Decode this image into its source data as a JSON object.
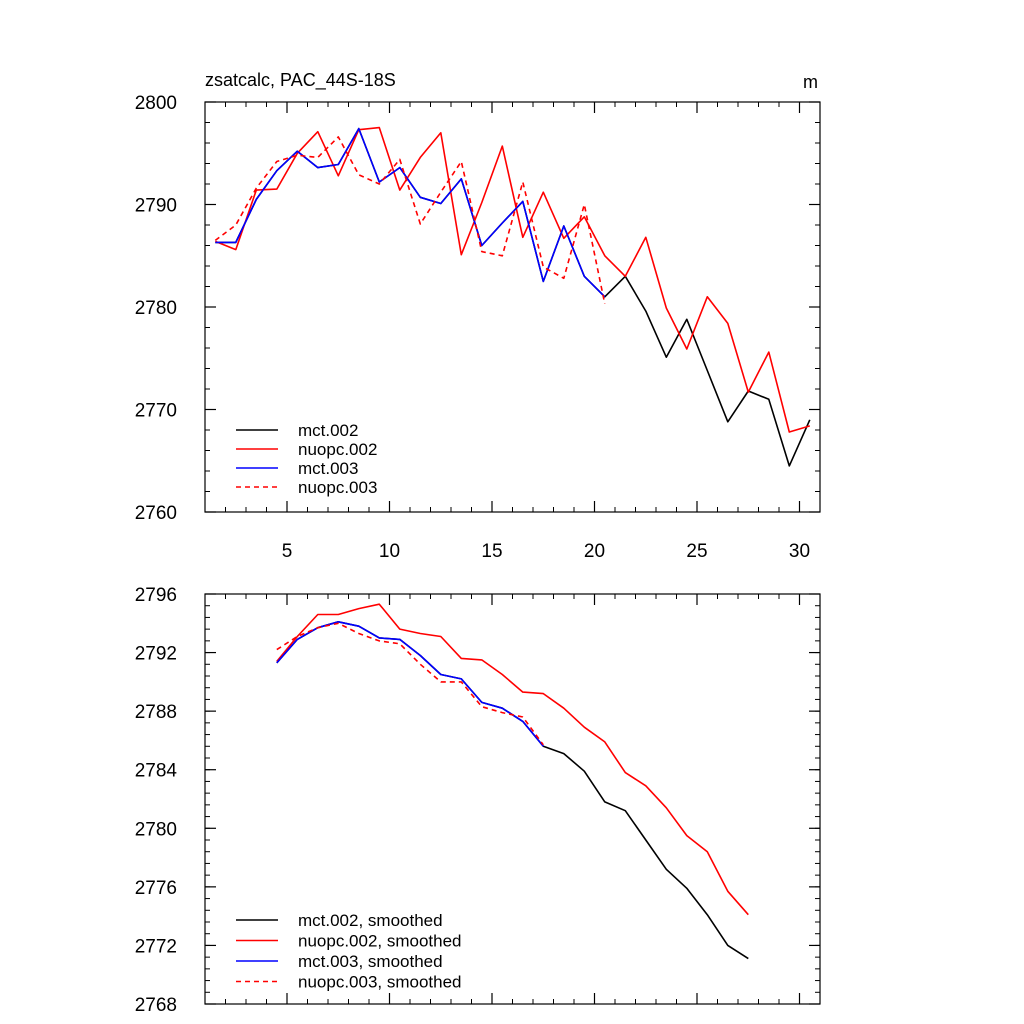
{
  "chart_data": [
    {
      "type": "line",
      "title": "zsatcalc, PAC_44S-18S",
      "units": "m",
      "xlabel": "",
      "ylabel": "",
      "xlim": [
        1,
        31
      ],
      "ylim": [
        2760,
        2800
      ],
      "xticks": [
        5,
        10,
        15,
        20,
        25,
        30
      ],
      "yticks": [
        2760,
        2770,
        2780,
        2790,
        2800
      ],
      "legend_position": "bottom-left",
      "series": [
        {
          "name": "mct.002",
          "color": "#000000",
          "dash": "solid",
          "x": [
            1.5,
            2.5,
            3.5,
            4.5,
            5.5,
            6.5,
            7.5,
            8.5,
            9.5,
            10.5,
            11.5,
            12.5,
            13.5,
            14.5,
            15.5,
            16.5,
            17.5,
            18.5,
            19.5,
            20.5,
            21.5,
            22.5,
            23.5,
            24.5,
            25.5,
            26.5,
            27.5,
            28.5,
            29.5,
            30.5
          ],
          "values": [
            2786.3,
            2786.3,
            2790.5,
            2793.3,
            2795.2,
            2793.6,
            2793.9,
            2797.4,
            2792.2,
            2793.6,
            2790.7,
            2790.1,
            2792.5,
            2786.0,
            2788.2,
            2790.3,
            2782.5,
            2787.9,
            2783.0,
            2781.0,
            2783.0,
            2779.6,
            2775.1,
            2778.8,
            2773.8,
            2768.8,
            2771.8,
            2771.0,
            2764.5,
            2769.0
          ]
        },
        {
          "name": "nuopc.002",
          "color": "#ff0000",
          "dash": "solid",
          "x": [
            1.5,
            2.5,
            3.5,
            4.5,
            5.5,
            6.5,
            7.5,
            8.5,
            9.5,
            10.5,
            11.5,
            12.5,
            13.5,
            14.5,
            15.5,
            16.5,
            17.5,
            18.5,
            19.5,
            20.5,
            21.5,
            22.5,
            23.5,
            24.5,
            25.5,
            26.5,
            27.5,
            28.5,
            29.5,
            30.5
          ],
          "values": [
            2786.4,
            2785.6,
            2791.4,
            2791.5,
            2795.0,
            2797.1,
            2792.8,
            2797.3,
            2797.5,
            2791.4,
            2794.6,
            2797.0,
            2785.1,
            2790.2,
            2795.7,
            2786.8,
            2791.2,
            2786.7,
            2788.8,
            2785.0,
            2783.0,
            2786.8,
            2779.9,
            2775.9,
            2781.0,
            2778.4,
            2771.7,
            2775.6,
            2767.8,
            2768.4
          ]
        },
        {
          "name": "mct.003",
          "color": "#0000ff",
          "dash": "solid",
          "x": [
            1.5,
            2.5,
            3.5,
            4.5,
            5.5,
            6.5,
            7.5,
            8.5,
            9.5,
            10.5,
            11.5,
            12.5,
            13.5,
            14.5,
            15.5,
            16.5,
            17.5,
            18.5,
            19.5,
            20.5
          ],
          "values": [
            2786.3,
            2786.3,
            2790.5,
            2793.3,
            2795.2,
            2793.6,
            2793.9,
            2797.4,
            2792.2,
            2793.6,
            2790.7,
            2790.1,
            2792.5,
            2786.0,
            2788.2,
            2790.3,
            2782.5,
            2787.9,
            2783.0,
            2781.0
          ]
        },
        {
          "name": "nuopc.003",
          "color": "#ff0000",
          "dash": "dashed",
          "x": [
            1.5,
            2.5,
            3.5,
            4.5,
            5.5,
            6.5,
            7.5,
            8.5,
            9.5,
            10.5,
            11.5,
            12.5,
            13.5,
            14.5,
            15.5,
            16.5,
            17.5,
            18.5,
            19.5,
            20.5
          ],
          "values": [
            2786.5,
            2788.0,
            2791.6,
            2794.2,
            2794.8,
            2794.6,
            2796.6,
            2792.9,
            2792.0,
            2794.4,
            2788.1,
            2791.2,
            2794.2,
            2785.4,
            2785.0,
            2792.2,
            2783.9,
            2782.8,
            2790.0,
            2780.3
          ]
        }
      ]
    },
    {
      "type": "line",
      "title": "",
      "xlabel": "",
      "ylabel": "",
      "xlim": [
        1,
        31
      ],
      "ylim": [
        2768,
        2796
      ],
      "xticks": [
        5,
        10,
        15,
        20,
        25,
        30
      ],
      "yticks": [
        2768,
        2772,
        2776,
        2780,
        2784,
        2788,
        2792,
        2796
      ],
      "legend_position": "bottom-left",
      "series": [
        {
          "name": "mct.002, smoothed",
          "color": "#000000",
          "dash": "solid",
          "x": [
            4.5,
            5.5,
            6.5,
            7.5,
            8.5,
            9.5,
            10.5,
            11.5,
            12.5,
            13.5,
            14.5,
            15.5,
            16.5,
            17.5,
            18.5,
            19.5,
            20.5,
            21.5,
            22.5,
            23.5,
            24.5,
            25.5,
            26.5,
            27.5
          ],
          "values": [
            2791.3,
            2792.9,
            2793.7,
            2794.1,
            2793.8,
            2793.0,
            2792.9,
            2791.8,
            2790.5,
            2790.2,
            2788.6,
            2788.2,
            2787.3,
            2785.6,
            2785.1,
            2783.9,
            2781.8,
            2781.2,
            2779.2,
            2777.2,
            2775.9,
            2774.1,
            2772.0,
            2771.1
          ]
        },
        {
          "name": "nuopc.002, smoothed",
          "color": "#ff0000",
          "dash": "solid",
          "x": [
            4.5,
            5.5,
            6.5,
            7.5,
            8.5,
            9.5,
            10.5,
            11.5,
            12.5,
            13.5,
            14.5,
            15.5,
            16.5,
            17.5,
            18.5,
            19.5,
            20.5,
            21.5,
            22.5,
            23.5,
            24.5,
            25.5,
            26.5,
            27.5
          ],
          "values": [
            2791.4,
            2793.1,
            2794.6,
            2794.6,
            2795.0,
            2795.3,
            2793.6,
            2793.3,
            2793.1,
            2791.6,
            2791.5,
            2790.5,
            2789.3,
            2789.2,
            2788.2,
            2786.9,
            2785.9,
            2783.8,
            2782.9,
            2781.4,
            2779.5,
            2778.4,
            2775.7,
            2774.1
          ]
        },
        {
          "name": "mct.003, smoothed",
          "color": "#0000ff",
          "dash": "solid",
          "x": [
            4.5,
            5.5,
            6.5,
            7.5,
            8.5,
            9.5,
            10.5,
            11.5,
            12.5,
            13.5,
            14.5,
            15.5,
            16.5,
            17.5
          ],
          "values": [
            2791.3,
            2792.9,
            2793.7,
            2794.1,
            2793.8,
            2793.0,
            2792.9,
            2791.8,
            2790.5,
            2790.2,
            2788.6,
            2788.2,
            2787.3,
            2785.6
          ]
        },
        {
          "name": "nuopc.003, smoothed",
          "color": "#ff0000",
          "dash": "dashed",
          "x": [
            4.5,
            5.5,
            6.5,
            7.5,
            8.5,
            9.5,
            10.5,
            11.5,
            12.5,
            13.5,
            14.5,
            15.5,
            16.5,
            17.5
          ],
          "values": [
            2792.2,
            2793.1,
            2793.7,
            2794.0,
            2793.3,
            2792.8,
            2792.6,
            2791.2,
            2790.0,
            2790.0,
            2788.3,
            2787.9,
            2787.6,
            2785.7
          ]
        }
      ]
    }
  ]
}
